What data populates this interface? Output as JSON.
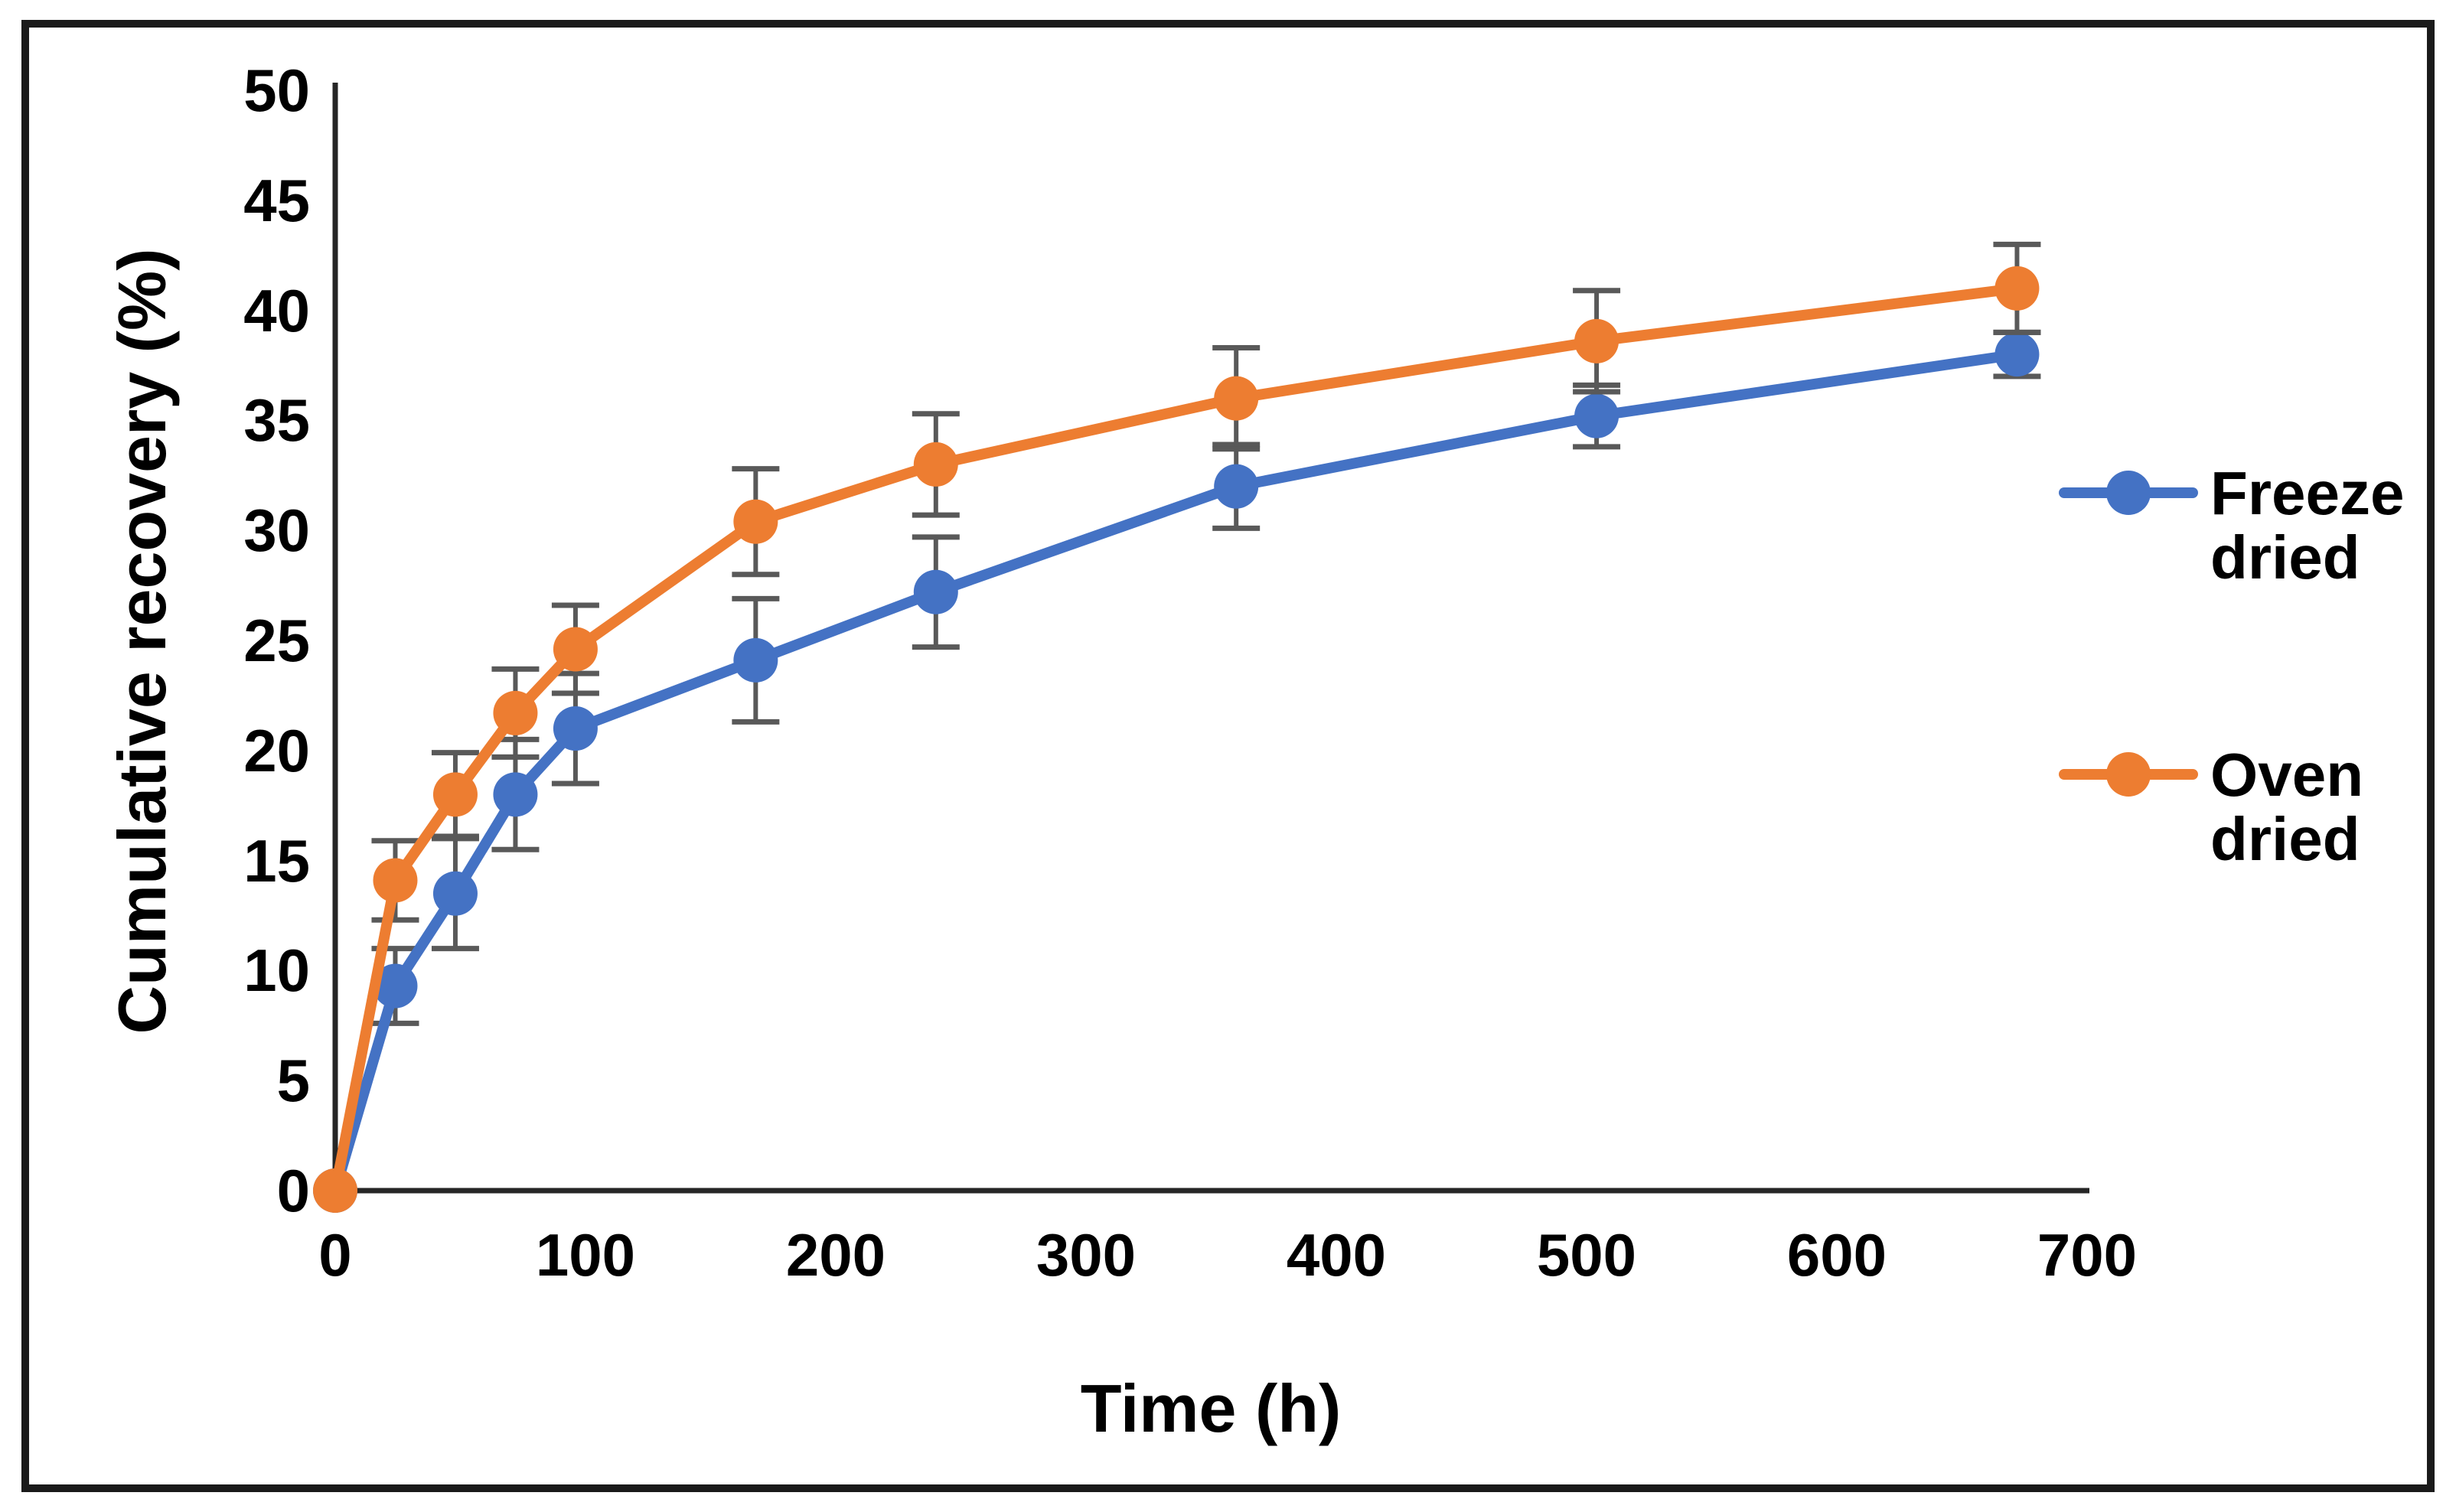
{
  "figure": {
    "background": "#ffffff",
    "border_color": "#1a1a1a"
  },
  "chart_data": {
    "type": "line",
    "title": "",
    "xlabel": "Time (h)",
    "ylabel": "Cumulative recovery (%)",
    "x": [
      0,
      24,
      48,
      72,
      96,
      168,
      240,
      360,
      504,
      672
    ],
    "xlim": [
      0,
      700
    ],
    "ylim": [
      0,
      50
    ],
    "xticks": [
      0,
      100,
      200,
      300,
      400,
      500,
      600,
      700
    ],
    "yticks": [
      0,
      5,
      10,
      15,
      20,
      25,
      30,
      35,
      40,
      45,
      50
    ],
    "grid": false,
    "legend_position": "right",
    "axis_color": "#262626",
    "error_bar_color": "#595959",
    "series": [
      {
        "name": "Freeze dried",
        "color": "#4472C4",
        "values": [
          0,
          9.3,
          13.5,
          18,
          21,
          24.1,
          27.2,
          32,
          35.2,
          38
        ],
        "errors": [
          0,
          1.7,
          2.5,
          2.5,
          2.5,
          2.8,
          2.5,
          1.9,
          1.4,
          1
        ]
      },
      {
        "name": "Oven dried",
        "color": "#ED7D31",
        "values": [
          0,
          14.1,
          18,
          21.7,
          24.6,
          30.4,
          33,
          36,
          38.6,
          41
        ],
        "errors": [
          0,
          1.8,
          1.9,
          2,
          2,
          2.4,
          2.3,
          2.3,
          2.3,
          2
        ]
      }
    ]
  }
}
